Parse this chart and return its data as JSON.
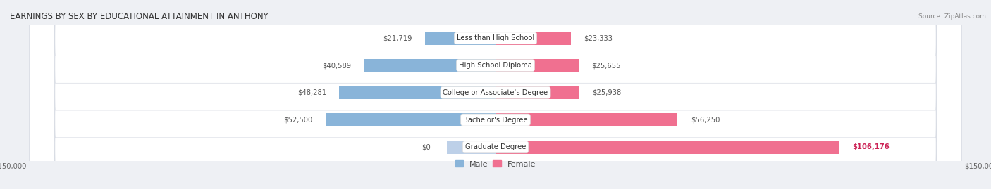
{
  "title": "EARNINGS BY SEX BY EDUCATIONAL ATTAINMENT IN ANTHONY",
  "source": "Source: ZipAtlas.com",
  "categories": [
    "Less than High School",
    "High School Diploma",
    "College or Associate's Degree",
    "Bachelor's Degree",
    "Graduate Degree"
  ],
  "male_values": [
    21719,
    40589,
    48281,
    52500,
    0
  ],
  "female_values": [
    23333,
    25655,
    25938,
    56250,
    106176
  ],
  "male_labels": [
    "$21,719",
    "$40,589",
    "$48,281",
    "$52,500",
    "$0"
  ],
  "female_labels": [
    "$23,333",
    "$25,655",
    "$25,938",
    "$56,250",
    "$106,176"
  ],
  "male_color": "#89b4d9",
  "male_color_light": "#bdd0e8",
  "female_color": "#f07090",
  "female_label_color_special": "#cc2255",
  "axis_max": 150000,
  "bg_color": "#eef0f4",
  "row_bg_color": "#ffffff",
  "bar_height": 0.62,
  "title_fontsize": 8.5,
  "label_fontsize": 7.2,
  "cat_fontsize": 7.2,
  "legend_fontsize": 8,
  "source_fontsize": 6.5
}
